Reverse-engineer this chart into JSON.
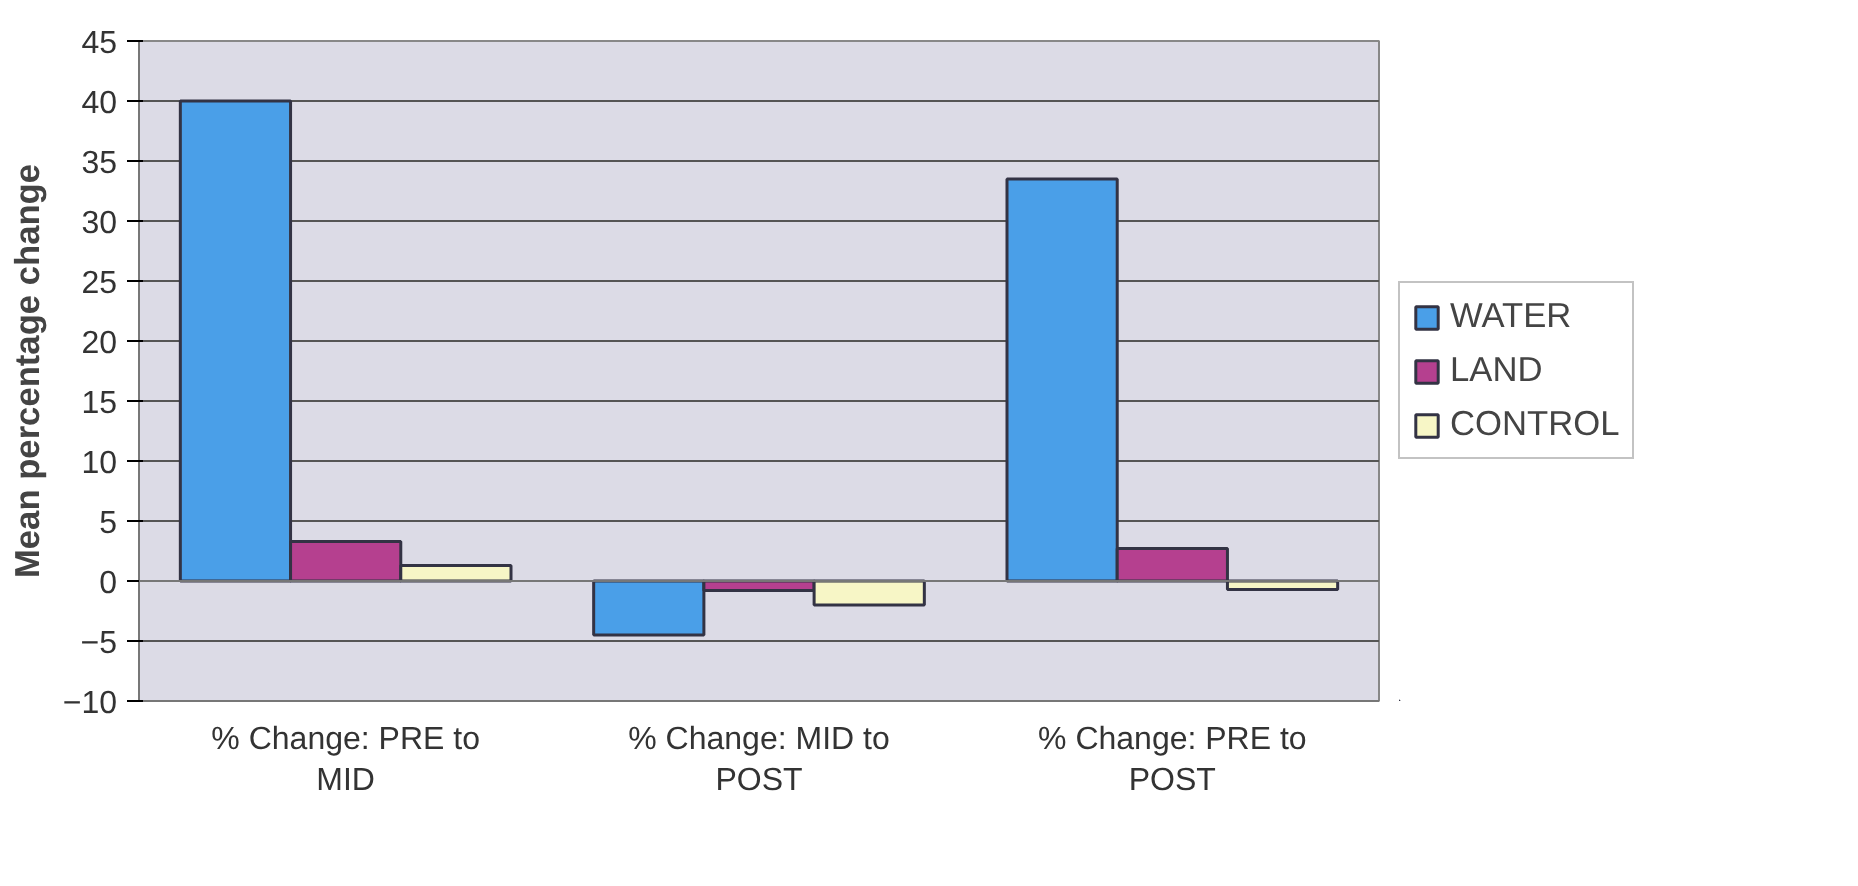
{
  "chart_data": {
    "type": "bar",
    "ylabel": "Mean percentage change",
    "categories": [
      "% Change: PRE to MID",
      "% Change: MID to POST",
      "% Change: PRE to POST"
    ],
    "series": [
      {
        "name": "WATER",
        "color": "#4a9fe8",
        "values": [
          40,
          -4.5,
          33.5
        ]
      },
      {
        "name": "LAND",
        "color": "#b5408f",
        "values": [
          3.3,
          -0.8,
          2.7
        ]
      },
      {
        "name": "CONTROL",
        "color": "#f7f6c6",
        "values": [
          1.3,
          -2,
          -0.7
        ]
      }
    ],
    "ylim": [
      -10,
      45
    ],
    "yticks": [
      -10,
      -5,
      0,
      5,
      10,
      15,
      20,
      25,
      30,
      35,
      40,
      45
    ],
    "grid": "y",
    "legend": "right"
  }
}
